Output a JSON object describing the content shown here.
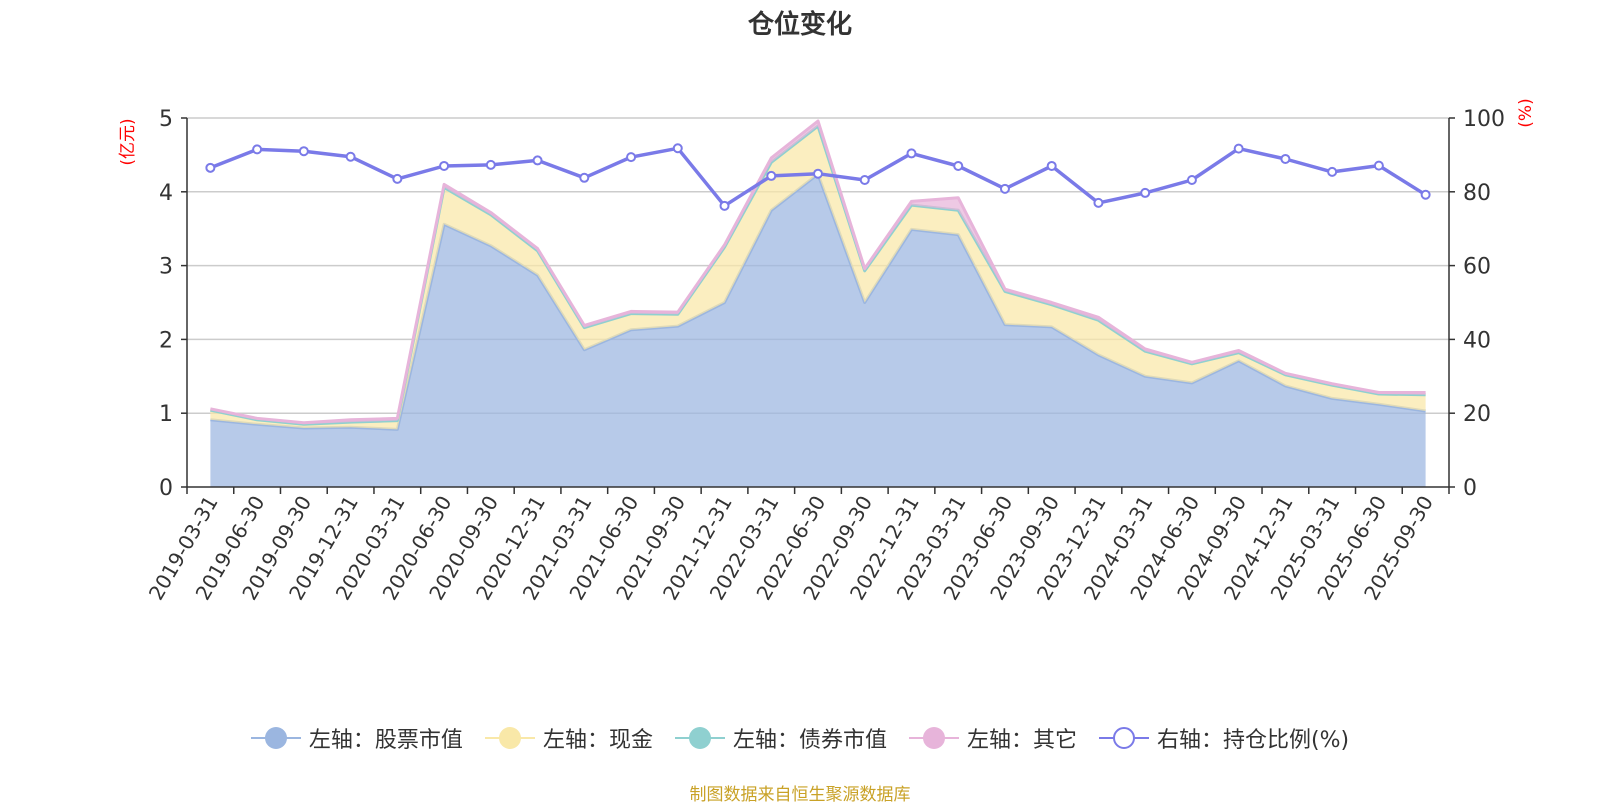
{
  "chart_data": {
    "type": "area",
    "title": "仓位变化",
    "x": [
      "2019-03-31",
      "2019-06-30",
      "2019-09-30",
      "2019-12-31",
      "2020-03-31",
      "2020-06-30",
      "2020-09-30",
      "2020-12-31",
      "2021-03-31",
      "2021-06-30",
      "2021-09-30",
      "2021-12-31",
      "2022-03-31",
      "2022-06-30",
      "2022-09-30",
      "2022-12-31",
      "2023-03-31",
      "2023-06-30",
      "2023-09-30",
      "2023-12-31",
      "2024-03-31",
      "2024-06-30",
      "2024-09-30",
      "2024-12-31",
      "2025-03-31",
      "2025-06-30",
      "2025-09-30"
    ],
    "left_axis": {
      "label": "(亿元)",
      "ylim": [
        0,
        5
      ],
      "ticks": [
        0,
        1,
        2,
        3,
        4,
        5
      ]
    },
    "right_axis": {
      "label": "(%)",
      "ylim": [
        0,
        100
      ],
      "ticks": [
        0,
        20,
        40,
        60,
        80,
        100
      ]
    },
    "stacked": true,
    "grid": true,
    "legend_position": "bottom",
    "series": [
      {
        "name": "左轴：股票市值",
        "axis": "left",
        "kind": "area",
        "color": "#9bb6e0",
        "values": [
          0.91,
          0.85,
          0.8,
          0.81,
          0.78,
          3.56,
          3.27,
          2.87,
          1.86,
          2.13,
          2.18,
          2.5,
          3.75,
          4.24,
          2.5,
          3.49,
          3.42,
          2.2,
          2.17,
          1.79,
          1.5,
          1.41,
          1.71,
          1.37,
          1.2,
          1.12,
          1.03
        ]
      },
      {
        "name": "左轴：现金",
        "axis": "left",
        "kind": "area",
        "color": "#f9e8a8",
        "values": [
          0.13,
          0.06,
          0.05,
          0.07,
          0.12,
          0.5,
          0.42,
          0.33,
          0.3,
          0.22,
          0.16,
          0.75,
          0.65,
          0.65,
          0.43,
          0.33,
          0.33,
          0.45,
          0.3,
          0.47,
          0.34,
          0.26,
          0.11,
          0.15,
          0.18,
          0.14,
          0.22
        ]
      },
      {
        "name": "左轴：债券市值",
        "axis": "left",
        "kind": "area",
        "color": "#8fd0d0",
        "values": [
          0,
          0,
          0,
          0,
          0,
          0,
          0,
          0,
          0,
          0,
          0,
          0,
          0,
          0,
          0,
          0,
          0,
          0,
          0,
          0,
          0,
          0,
          0,
          0,
          0,
          0,
          0
        ]
      },
      {
        "name": "左轴：其它",
        "axis": "left",
        "kind": "area",
        "color": "#e7b4da",
        "values": [
          0.02,
          0.02,
          0.02,
          0.03,
          0.03,
          0.04,
          0.03,
          0.03,
          0.03,
          0.03,
          0.03,
          0.03,
          0.06,
          0.07,
          0.03,
          0.05,
          0.17,
          0.03,
          0.03,
          0.04,
          0.03,
          0.02,
          0.03,
          0.02,
          0.02,
          0.02,
          0.03
        ]
      },
      {
        "name": "右轴：持仓比例(%)",
        "axis": "right",
        "kind": "line",
        "color": "#7a7ae8",
        "values": [
          86.5,
          91.5,
          91.0,
          89.5,
          83.5,
          87.0,
          87.3,
          88.5,
          83.8,
          89.4,
          91.8,
          76.2,
          84.3,
          84.9,
          83.2,
          90.4,
          87.0,
          80.8,
          87.0,
          77.0,
          79.7,
          83.2,
          91.7,
          88.9,
          85.4,
          87.1,
          79.2
        ]
      }
    ],
    "source_note": "制图数据来自恒生聚源数据库"
  }
}
